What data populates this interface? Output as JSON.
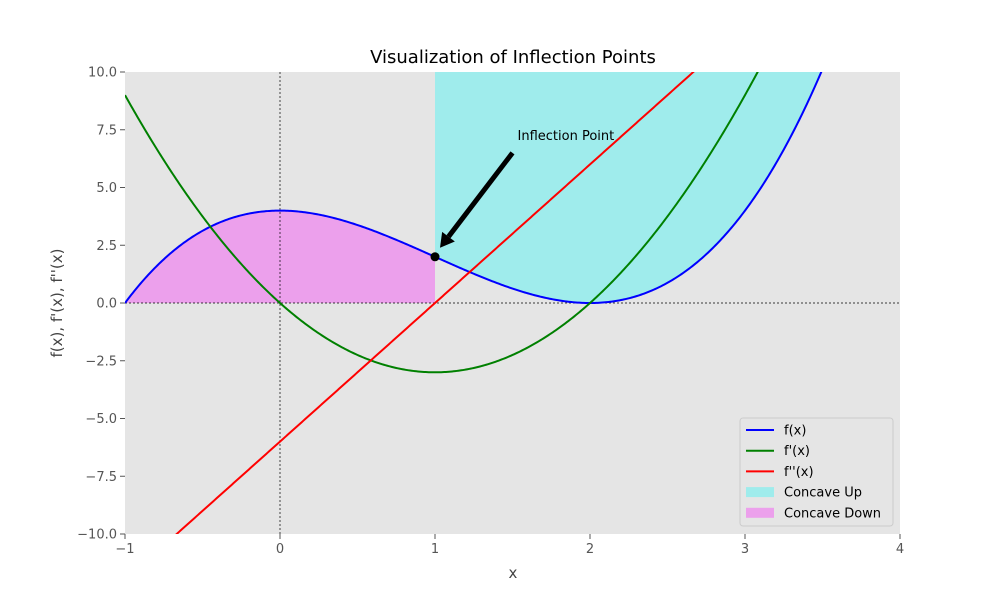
{
  "chart_data": {
    "type": "line",
    "title": "Visualization of Inflection Points",
    "xlabel": "x",
    "ylabel": "f(x), f'(x), f''(x)",
    "xlim": [
      -1,
      4
    ],
    "ylim": [
      -10,
      10
    ],
    "x_ticks": [
      -1,
      0,
      1,
      2,
      3,
      4
    ],
    "x_tick_labels": [
      "−1",
      "0",
      "1",
      "2",
      "3",
      "4"
    ],
    "y_ticks": [
      -10,
      -7.5,
      -5,
      -2.5,
      0,
      2.5,
      5,
      7.5,
      10
    ],
    "y_tick_labels": [
      "−10.0",
      "−7.5",
      "−5.0",
      "−2.5",
      "0.0",
      "2.5",
      "5.0",
      "7.5",
      "10.0"
    ],
    "grid": false,
    "legend_position": "lower-right",
    "series": [
      {
        "name": "f(x)",
        "color": "#0000ff",
        "kind": "line",
        "expression": "x^3 - 3x^2 + 4",
        "x": [
          -1,
          -0.75,
          -0.5,
          -0.25,
          0,
          0.25,
          0.5,
          0.75,
          1,
          1.25,
          1.5,
          1.75,
          2,
          2.25,
          2.5,
          2.75,
          3,
          3.25,
          3.5
        ],
        "y": [
          0,
          1.891,
          3.125,
          3.797,
          4,
          3.828,
          3.375,
          2.734,
          2,
          1.266,
          0.625,
          0.172,
          0,
          0.203,
          0.875,
          2.109,
          4,
          6.641,
          10.125
        ]
      },
      {
        "name": "f'(x)",
        "color": "#008000",
        "kind": "line",
        "expression": "3x^2 - 6x",
        "x": [
          -1,
          -0.5,
          0,
          0.5,
          1,
          1.5,
          2,
          2.5,
          3,
          3.1
        ],
        "y": [
          9,
          3.75,
          0,
          -2.25,
          -3,
          -2.25,
          0,
          3.75,
          9,
          10.23
        ]
      },
      {
        "name": "f''(x)",
        "color": "#ff0000",
        "kind": "line",
        "expression": "6x - 6",
        "x": [
          -0.667,
          2.667
        ],
        "y": [
          -10,
          10
        ]
      },
      {
        "name": "Concave Up",
        "color": "#9fecec",
        "kind": "area",
        "between": [
          "f(x)",
          10
        ],
        "x_range": [
          1,
          4
        ]
      },
      {
        "name": "Concave Down",
        "color": "#eca0ec",
        "kind": "area",
        "between": [
          0,
          "f(x)"
        ],
        "x_range": [
          -1,
          1
        ]
      }
    ],
    "annotations": [
      {
        "text": "Inflection Point",
        "point": [
          1,
          2
        ],
        "text_at": [
          1.5,
          6.5
        ]
      }
    ],
    "reference_lines": {
      "x": 0,
      "y": 0
    }
  }
}
